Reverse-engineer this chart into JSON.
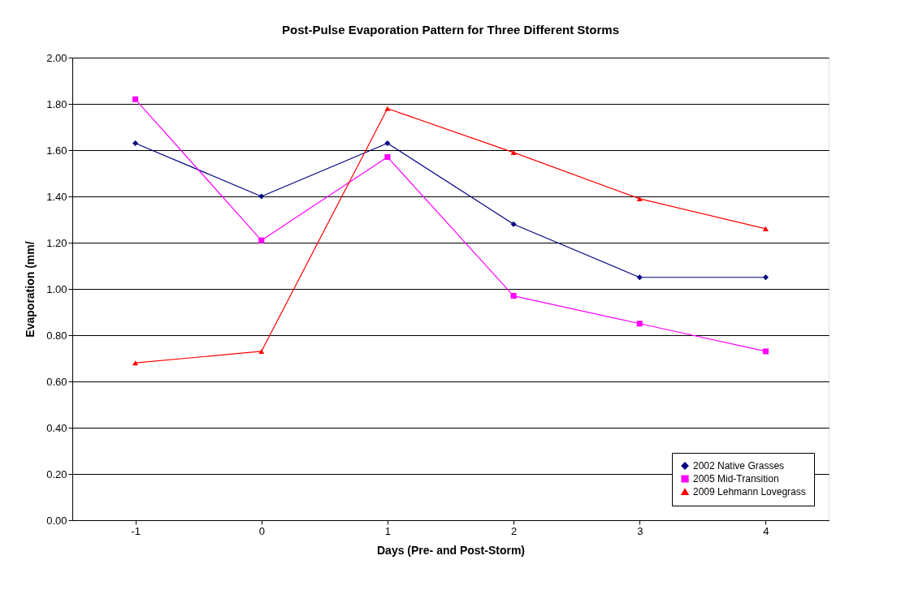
{
  "chart_data": {
    "type": "line",
    "title": "Post-Pulse Evaporation Pattern for Three Different Storms",
    "xlabel": "Days (Pre- and Post-Storm)",
    "ylabel": "Evaporation (mm/",
    "categories": [
      "-1",
      "0",
      "1",
      "2",
      "3",
      "4"
    ],
    "series": [
      {
        "name": "2002 Native Grasses",
        "color": "#000080",
        "marker": "diamond",
        "values": [
          1.63,
          1.4,
          1.63,
          1.28,
          1.05,
          1.05
        ]
      },
      {
        "name": "2005 Mid-Transition",
        "color": "#ff00ff",
        "marker": "square",
        "values": [
          1.82,
          1.21,
          1.57,
          0.97,
          0.85,
          0.73
        ]
      },
      {
        "name": "2009 Lehmann Lovegrass",
        "color": "#ff0000",
        "marker": "triangle",
        "values": [
          0.68,
          0.73,
          1.78,
          1.59,
          1.39,
          1.26
        ]
      }
    ],
    "ylim": [
      0,
      2
    ],
    "yticks": [
      {
        "value": 0,
        "label": "0.00"
      },
      {
        "value": 0.2,
        "label": "0.20"
      },
      {
        "value": 0.4,
        "label": "0.40"
      },
      {
        "value": 0.6,
        "label": "0.60"
      },
      {
        "value": 0.8,
        "label": "0.80"
      },
      {
        "value": 1.0,
        "label": "1.00"
      },
      {
        "value": 1.2,
        "label": "1.20"
      },
      {
        "value": 1.4,
        "label": "1.40"
      },
      {
        "value": 1.6,
        "label": "1.60"
      },
      {
        "value": 1.8,
        "label": "1.80"
      },
      {
        "value": 2.0,
        "label": "2.00"
      }
    ],
    "grid": "y",
    "legend": "bottom right",
    "line_style": "solid"
  }
}
